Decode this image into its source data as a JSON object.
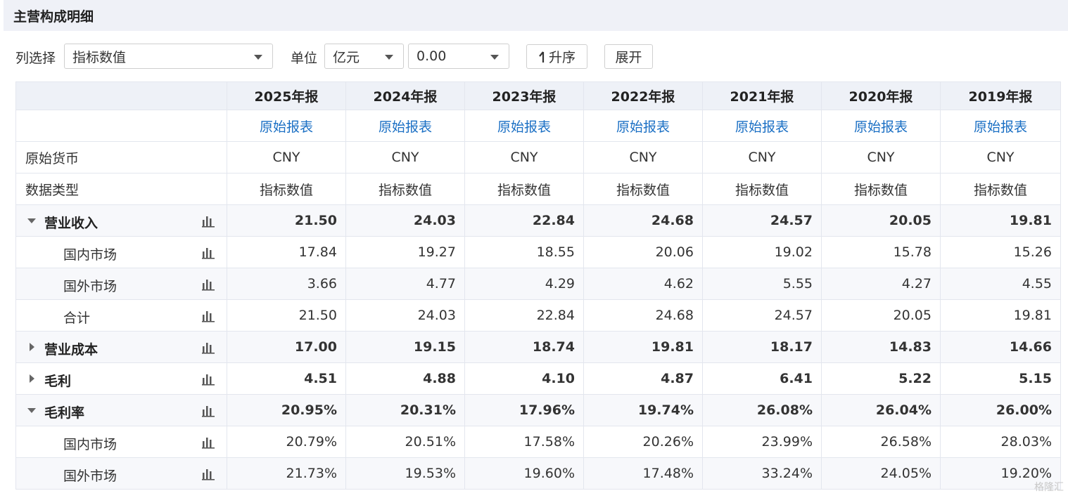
{
  "header": {
    "title": "主营构成明细"
  },
  "toolbar": {
    "column_select_label": "列选择",
    "column_select_value": "指标数值",
    "unit_label": "单位",
    "unit_value": "亿元",
    "precision_value": "0.00",
    "sort_button": "升序",
    "expand_button": "展开"
  },
  "table": {
    "columns": [
      "2025年报",
      "2024年报",
      "2023年报",
      "2022年报",
      "2021年报",
      "2020年报",
      "2019年报"
    ],
    "link_label": "原始报表",
    "meta_rows": [
      {
        "label": "原始货币",
        "values": [
          "CNY",
          "CNY",
          "CNY",
          "CNY",
          "CNY",
          "CNY",
          "CNY"
        ]
      },
      {
        "label": "数据类型",
        "values": [
          "指标数值",
          "指标数值",
          "指标数值",
          "指标数值",
          "指标数值",
          "指标数值",
          "指标数值"
        ]
      }
    ],
    "data_rows": [
      {
        "label": "营业收入",
        "level": 0,
        "expander": "expanded",
        "values": [
          "21.50",
          "24.03",
          "22.84",
          "24.68",
          "24.57",
          "20.05",
          "19.81"
        ]
      },
      {
        "label": "国内市场",
        "level": 1,
        "values": [
          "17.84",
          "19.27",
          "18.55",
          "20.06",
          "19.02",
          "15.78",
          "15.26"
        ]
      },
      {
        "label": "国外市场",
        "level": 1,
        "values": [
          "3.66",
          "4.77",
          "4.29",
          "4.62",
          "5.55",
          "4.27",
          "4.55"
        ]
      },
      {
        "label": "合计",
        "level": 1,
        "values": [
          "21.50",
          "24.03",
          "22.84",
          "24.68",
          "24.57",
          "20.05",
          "19.81"
        ]
      },
      {
        "label": "营业成本",
        "level": 0,
        "expander": "collapsed",
        "values": [
          "17.00",
          "19.15",
          "18.74",
          "19.81",
          "18.17",
          "14.83",
          "14.66"
        ]
      },
      {
        "label": "毛利",
        "level": 0,
        "expander": "collapsed",
        "values": [
          "4.51",
          "4.88",
          "4.10",
          "4.87",
          "6.41",
          "5.22",
          "5.15"
        ]
      },
      {
        "label": "毛利率",
        "level": 0,
        "expander": "expanded",
        "values": [
          "20.95%",
          "20.31%",
          "17.96%",
          "19.74%",
          "26.08%",
          "26.04%",
          "26.00%"
        ]
      },
      {
        "label": "国内市场",
        "level": 1,
        "values": [
          "20.79%",
          "20.51%",
          "17.58%",
          "20.26%",
          "23.99%",
          "26.58%",
          "28.03%"
        ]
      },
      {
        "label": "国外市场",
        "level": 1,
        "values": [
          "21.73%",
          "19.53%",
          "19.60%",
          "17.48%",
          "33.24%",
          "24.05%",
          "19.20%"
        ]
      }
    ]
  },
  "watermark": "格隆汇",
  "icons": {
    "chart": "bar-chart-icon",
    "dropdown": "chevron-down-icon",
    "sort": "sort-up-icon"
  },
  "colors": {
    "link": "#1a6fc4",
    "header_bg": "#eef1f7"
  }
}
